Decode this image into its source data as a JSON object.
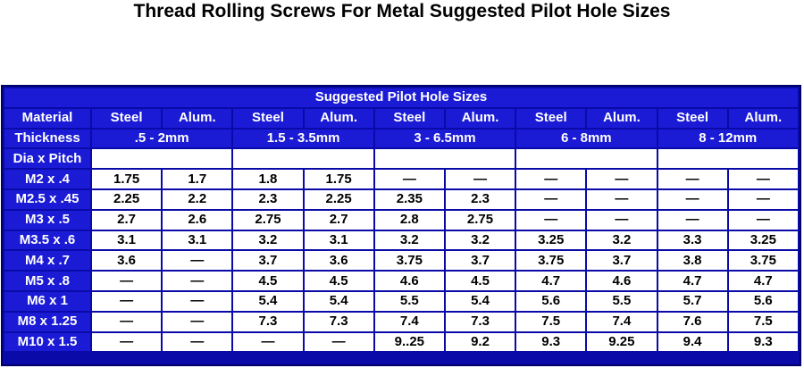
{
  "title": "Thread Rolling Screws For Metal Suggested Pilot Hole Sizes",
  "table": {
    "caption": "Suggested Pilot Hole Sizes",
    "material_label": "Material",
    "materials": [
      "Steel",
      "Alum.",
      "Steel",
      "Alum.",
      "Steel",
      "Alum.",
      "Steel",
      "Alum.",
      "Steel",
      "Alum."
    ],
    "thickness_label": "Thickness",
    "thicknesses": [
      ".5 - 2mm",
      "1.5 - 3.5mm",
      "3 - 6.5mm",
      "6 - 8mm",
      "8 - 12mm"
    ],
    "dia_label": "Dia x Pitch",
    "rows": [
      {
        "size": "M2 x .4",
        "values": [
          "1.75",
          "1.7",
          "1.8",
          "1.75",
          "—",
          "—",
          "—",
          "—",
          "—",
          "—"
        ]
      },
      {
        "size": "M2.5 x .45",
        "values": [
          "2.25",
          "2.2",
          "2.3",
          "2.25",
          "2.35",
          "2.3",
          "—",
          "—",
          "—",
          "—"
        ]
      },
      {
        "size": "M3 x .5",
        "values": [
          "2.7",
          "2.6",
          "2.75",
          "2.7",
          "2.8",
          "2.75",
          "—",
          "—",
          "—",
          "—"
        ]
      },
      {
        "size": "M3.5 x .6",
        "values": [
          "3.1",
          "3.1",
          "3.2",
          "3.1",
          "3.2",
          "3.2",
          "3.25",
          "3.2",
          "3.3",
          "3.25"
        ]
      },
      {
        "size": "M4 x .7",
        "values": [
          "3.6",
          "—",
          "3.7",
          "3.6",
          "3.75",
          "3.7",
          "3.75",
          "3.7",
          "3.8",
          "3.75"
        ]
      },
      {
        "size": "M5 x .8",
        "values": [
          "—",
          "—",
          "4.5",
          "4.5",
          "4.6",
          "4.5",
          "4.7",
          "4.6",
          "4.7",
          "4.7"
        ]
      },
      {
        "size": "M6 x 1",
        "values": [
          "—",
          "—",
          "5.4",
          "5.4",
          "5.5",
          "5.4",
          "5.6",
          "5.5",
          "5.7",
          "5.6"
        ]
      },
      {
        "size": "M8 x 1.25",
        "values": [
          "—",
          "—",
          "7.3",
          "7.3",
          "7.4",
          "7.3",
          "7.5",
          "7.4",
          "7.6",
          "7.5"
        ]
      },
      {
        "size": "M10 x 1.5",
        "values": [
          "—",
          "—",
          "—",
          "—",
          "9..25",
          "9.2",
          "9.3",
          "9.25",
          "9.4",
          "9.3"
        ]
      }
    ]
  }
}
